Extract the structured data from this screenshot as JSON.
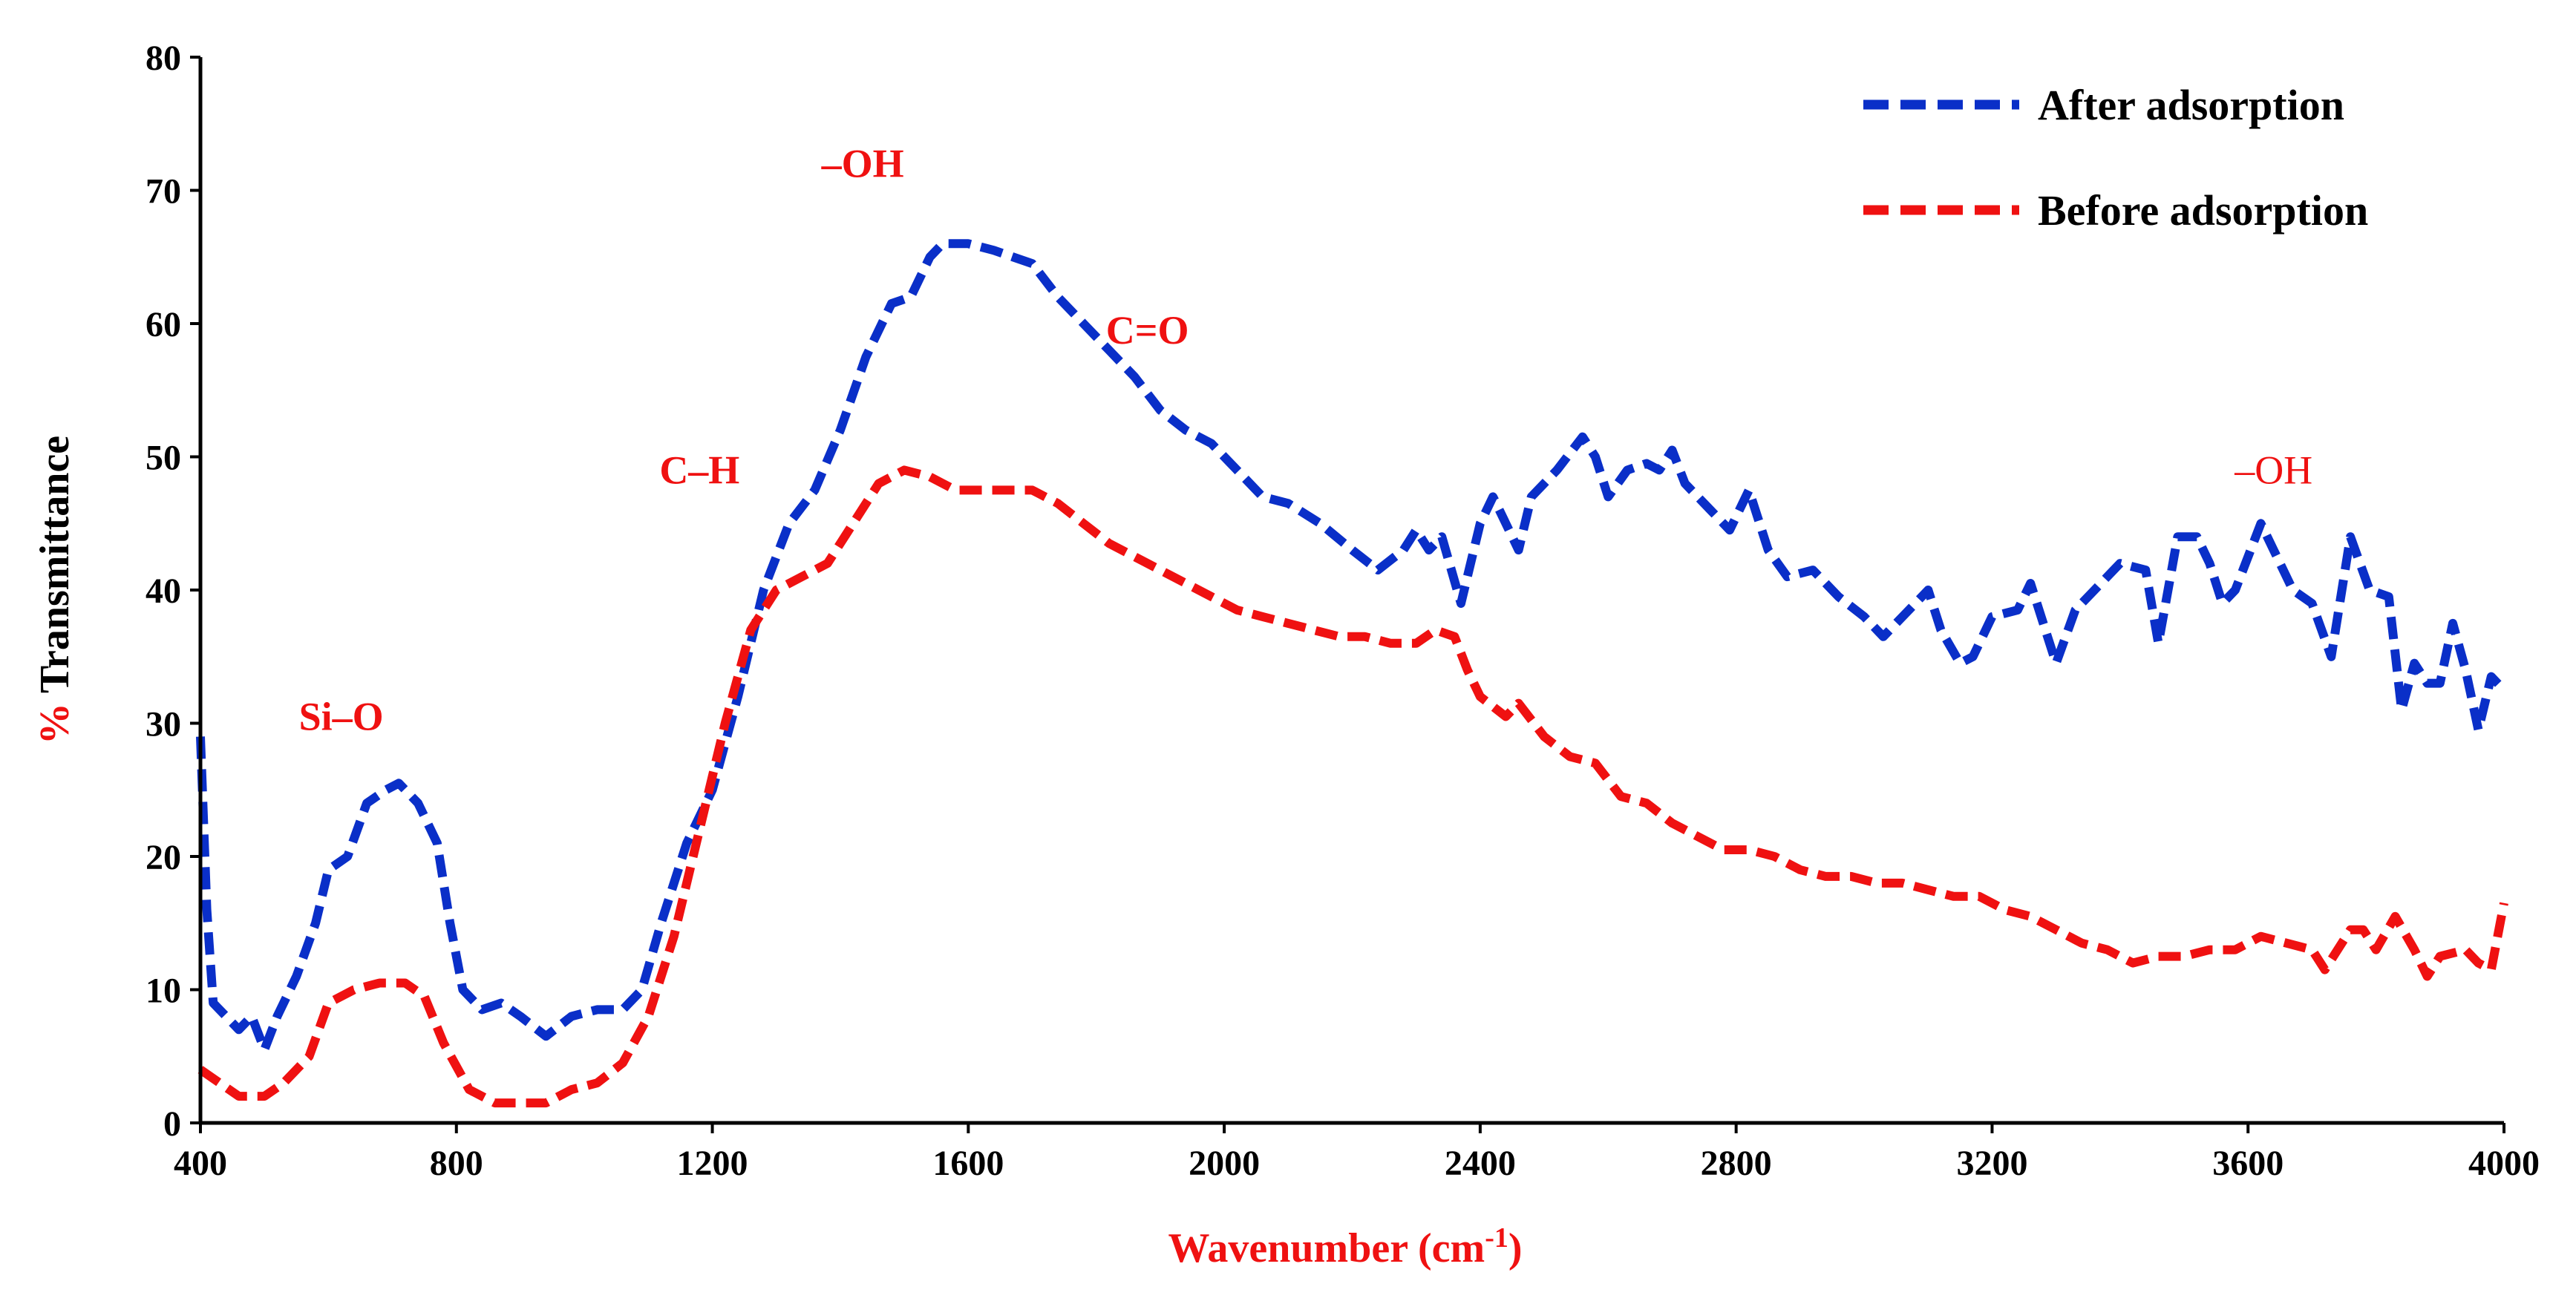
{
  "colors": {
    "after": "#0a2fc8",
    "before": "#ef1111",
    "axis": "#000000",
    "accent_red": "#ef1111"
  },
  "chart_data": {
    "type": "line",
    "xlabel": "Wavenumber (cm",
    "xlabel_sup": "-1",
    "xlabel_close": ")",
    "ylabel_prefix": "%",
    "ylabel_main": " Transmittance",
    "xlim": [
      400,
      4000
    ],
    "ylim": [
      0,
      80
    ],
    "x_ticks": [
      "400",
      "800",
      "1200",
      "1600",
      "2000",
      "2400",
      "2800",
      "3200",
      "3600",
      "4000"
    ],
    "y_ticks": [
      "0",
      "10",
      "20",
      "30",
      "40",
      "50",
      "60",
      "70",
      "80"
    ],
    "grid": false,
    "legend_position": "top-right",
    "annotations": [
      {
        "text": "Si–O",
        "x": 620,
        "y": 29.5,
        "bold": true
      },
      {
        "text": "–OH",
        "x": 1435,
        "y": 71.0,
        "bold": true
      },
      {
        "text": "C=O",
        "x": 1880,
        "y": 58.5,
        "bold": true
      },
      {
        "text": "C–H",
        "x": 1180,
        "y": 48.0,
        "bold": true
      },
      {
        "text": "–OH",
        "x": 3640,
        "y": 48.0,
        "bold": false
      }
    ],
    "series": [
      {
        "name": "After adsorption",
        "color_key": "after",
        "points": [
          [
            400,
            29
          ],
          [
            410,
            16
          ],
          [
            420,
            9
          ],
          [
            440,
            8
          ],
          [
            460,
            7
          ],
          [
            480,
            8
          ],
          [
            500,
            5.5
          ],
          [
            520,
            8
          ],
          [
            550,
            11
          ],
          [
            580,
            15
          ],
          [
            600,
            19
          ],
          [
            630,
            20
          ],
          [
            660,
            24
          ],
          [
            690,
            25
          ],
          [
            710,
            25.5
          ],
          [
            740,
            24
          ],
          [
            770,
            21
          ],
          [
            790,
            15
          ],
          [
            810,
            10
          ],
          [
            840,
            8.5
          ],
          [
            870,
            9
          ],
          [
            900,
            8
          ],
          [
            940,
            6.5
          ],
          [
            980,
            8
          ],
          [
            1020,
            8.5
          ],
          [
            1060,
            8.5
          ],
          [
            1090,
            10
          ],
          [
            1120,
            15
          ],
          [
            1160,
            21
          ],
          [
            1200,
            25
          ],
          [
            1240,
            32
          ],
          [
            1280,
            40
          ],
          [
            1320,
            45
          ],
          [
            1360,
            47.5
          ],
          [
            1400,
            52
          ],
          [
            1440,
            57.5
          ],
          [
            1480,
            61.5
          ],
          [
            1510,
            62
          ],
          [
            1540,
            65
          ],
          [
            1560,
            66
          ],
          [
            1600,
            66
          ],
          [
            1640,
            65.5
          ],
          [
            1670,
            65
          ],
          [
            1700,
            64.5
          ],
          [
            1740,
            62
          ],
          [
            1780,
            60
          ],
          [
            1820,
            58
          ],
          [
            1860,
            56
          ],
          [
            1900,
            53.5
          ],
          [
            1940,
            52
          ],
          [
            1980,
            51
          ],
          [
            2020,
            49
          ],
          [
            2060,
            47
          ],
          [
            2100,
            46.5
          ],
          [
            2150,
            45
          ],
          [
            2200,
            43
          ],
          [
            2240,
            41.5
          ],
          [
            2280,
            43
          ],
          [
            2300,
            44.5
          ],
          [
            2320,
            43
          ],
          [
            2340,
            44
          ],
          [
            2370,
            39
          ],
          [
            2400,
            45
          ],
          [
            2420,
            47
          ],
          [
            2440,
            45
          ],
          [
            2460,
            43
          ],
          [
            2480,
            47
          ],
          [
            2520,
            49
          ],
          [
            2560,
            51.5
          ],
          [
            2580,
            50
          ],
          [
            2600,
            47
          ],
          [
            2630,
            49
          ],
          [
            2660,
            49.5
          ],
          [
            2680,
            49
          ],
          [
            2700,
            50.5
          ],
          [
            2720,
            48
          ],
          [
            2760,
            46
          ],
          [
            2790,
            44.5
          ],
          [
            2820,
            47.5
          ],
          [
            2850,
            43
          ],
          [
            2880,
            41
          ],
          [
            2920,
            41.5
          ],
          [
            2960,
            39.5
          ],
          [
            3000,
            38
          ],
          [
            3030,
            36.5
          ],
          [
            3060,
            38
          ],
          [
            3100,
            40
          ],
          [
            3120,
            37
          ],
          [
            3150,
            34.5
          ],
          [
            3170,
            35
          ],
          [
            3200,
            38
          ],
          [
            3240,
            38.5
          ],
          [
            3260,
            40.5
          ],
          [
            3300,
            34.5
          ],
          [
            3330,
            38.5
          ],
          [
            3360,
            40
          ],
          [
            3400,
            42
          ],
          [
            3440,
            41.5
          ],
          [
            3460,
            36
          ],
          [
            3490,
            44
          ],
          [
            3520,
            44
          ],
          [
            3540,
            42
          ],
          [
            3560,
            39
          ],
          [
            3580,
            40
          ],
          [
            3620,
            45
          ],
          [
            3640,
            43
          ],
          [
            3670,
            40
          ],
          [
            3700,
            39
          ],
          [
            3730,
            35
          ],
          [
            3760,
            44
          ],
          [
            3790,
            40
          ],
          [
            3820,
            39.5
          ],
          [
            3840,
            31
          ],
          [
            3860,
            34.5
          ],
          [
            3880,
            33
          ],
          [
            3900,
            33
          ],
          [
            3920,
            37.5
          ],
          [
            3940,
            34
          ],
          [
            3960,
            29.5
          ],
          [
            3980,
            33.5
          ],
          [
            4000,
            32.5
          ]
        ]
      },
      {
        "name": "Before adsorption",
        "color_key": "before",
        "points": [
          [
            400,
            4
          ],
          [
            430,
            3
          ],
          [
            460,
            2
          ],
          [
            500,
            2
          ],
          [
            530,
            3
          ],
          [
            570,
            5
          ],
          [
            600,
            9
          ],
          [
            640,
            10
          ],
          [
            680,
            10.5
          ],
          [
            720,
            10.5
          ],
          [
            750,
            9.5
          ],
          [
            780,
            6
          ],
          [
            820,
            2.5
          ],
          [
            860,
            1.5
          ],
          [
            900,
            1.5
          ],
          [
            940,
            1.5
          ],
          [
            980,
            2.5
          ],
          [
            1020,
            3
          ],
          [
            1060,
            4.5
          ],
          [
            1100,
            8
          ],
          [
            1140,
            14
          ],
          [
            1180,
            22
          ],
          [
            1220,
            30
          ],
          [
            1260,
            37
          ],
          [
            1300,
            40
          ],
          [
            1340,
            41
          ],
          [
            1380,
            42
          ],
          [
            1420,
            45
          ],
          [
            1460,
            48
          ],
          [
            1500,
            49
          ],
          [
            1540,
            48.5
          ],
          [
            1580,
            47.5
          ],
          [
            1620,
            47.5
          ],
          [
            1660,
            47.5
          ],
          [
            1700,
            47.5
          ],
          [
            1740,
            46.5
          ],
          [
            1780,
            45
          ],
          [
            1820,
            43.5
          ],
          [
            1860,
            42.5
          ],
          [
            1900,
            41.5
          ],
          [
            1940,
            40.5
          ],
          [
            1980,
            39.5
          ],
          [
            2020,
            38.5
          ],
          [
            2060,
            38
          ],
          [
            2100,
            37.5
          ],
          [
            2140,
            37
          ],
          [
            2180,
            36.5
          ],
          [
            2220,
            36.5
          ],
          [
            2260,
            36
          ],
          [
            2300,
            36
          ],
          [
            2330,
            37
          ],
          [
            2360,
            36.5
          ],
          [
            2380,
            34
          ],
          [
            2400,
            32
          ],
          [
            2440,
            30.5
          ],
          [
            2460,
            31.5
          ],
          [
            2500,
            29
          ],
          [
            2540,
            27.5
          ],
          [
            2580,
            27
          ],
          [
            2620,
            24.5
          ],
          [
            2660,
            24
          ],
          [
            2700,
            22.5
          ],
          [
            2740,
            21.5
          ],
          [
            2780,
            20.5
          ],
          [
            2820,
            20.5
          ],
          [
            2860,
            20
          ],
          [
            2900,
            19
          ],
          [
            2940,
            18.5
          ],
          [
            2980,
            18.5
          ],
          [
            3020,
            18
          ],
          [
            3060,
            18
          ],
          [
            3100,
            17.5
          ],
          [
            3140,
            17
          ],
          [
            3180,
            17
          ],
          [
            3220,
            16
          ],
          [
            3260,
            15.5
          ],
          [
            3300,
            14.5
          ],
          [
            3340,
            13.5
          ],
          [
            3380,
            13
          ],
          [
            3420,
            12
          ],
          [
            3460,
            12.5
          ],
          [
            3500,
            12.5
          ],
          [
            3540,
            13
          ],
          [
            3580,
            13
          ],
          [
            3620,
            14
          ],
          [
            3660,
            13.5
          ],
          [
            3700,
            13
          ],
          [
            3720,
            11.5
          ],
          [
            3760,
            14.5
          ],
          [
            3780,
            14.5
          ],
          [
            3800,
            13
          ],
          [
            3830,
            15.5
          ],
          [
            3860,
            13
          ],
          [
            3880,
            11
          ],
          [
            3900,
            12.5
          ],
          [
            3940,
            13
          ],
          [
            3960,
            12
          ],
          [
            3980,
            11.5
          ],
          [
            4000,
            16.5
          ]
        ]
      }
    ]
  }
}
